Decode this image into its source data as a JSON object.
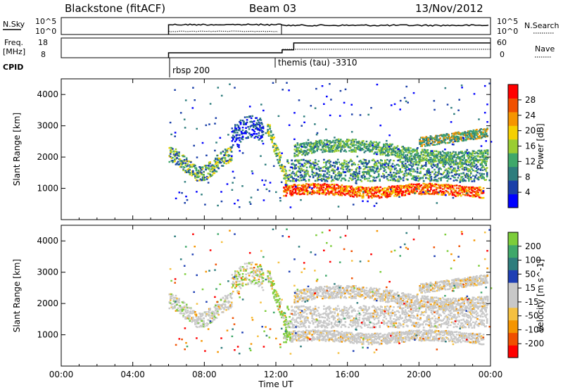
{
  "header": {
    "station": "Blackstone (fitACF)",
    "beam": "Beam 03",
    "date": "13/Nov/2012"
  },
  "noise_panel": {
    "left_label": "N.Sky",
    "right_label": "N.Search",
    "left_ticks": [
      "10^5",
      "10^0"
    ],
    "right_ticks": [
      "10^5",
      "10^0"
    ]
  },
  "freq_panel": {
    "left_label_line1": "Freq.",
    "left_label_line2": "[MHz]",
    "left_ticks": [
      "18",
      "8"
    ],
    "right_label": "Nave",
    "right_ticks": [
      "60",
      "0"
    ]
  },
  "cpid": {
    "label": "CPID",
    "entries": [
      {
        "name": "rbsp 200",
        "time_h": 6.0
      },
      {
        "name": "themis (tau) -3310",
        "time_h": 12.35
      }
    ]
  },
  "time_axis": {
    "label": "Time UT",
    "ticks": [
      "00:00",
      "04:00",
      "08:00",
      "12:00",
      "16:00",
      "20:00",
      "00:00"
    ],
    "range_h": [
      0,
      24
    ]
  },
  "colors": {
    "power": [
      "#0000ff",
      "#1a3fa8",
      "#2e7d7d",
      "#3fa86a",
      "#9acd32",
      "#f5d000",
      "#f59500",
      "#f05000",
      "#ff0000"
    ],
    "velocity_pos": [
      "#1e3fb4",
      "#2e7d7d",
      "#3fa86a",
      "#7ccd3a"
    ],
    "velocity_gray": "#c8c8c8",
    "velocity_neg": [
      "#f5c040",
      "#f59500",
      "#f05000",
      "#ff0000"
    ]
  },
  "chart_data": [
    {
      "type": "line",
      "name": "noise",
      "ylabel_left": "N.Sky",
      "ylabel_right": "N.Search",
      "x_range": [
        0,
        24
      ],
      "data_start_h": 6.0
    },
    {
      "type": "line",
      "name": "frequency",
      "series": [
        {
          "x": [
            6.0,
            12.35
          ],
          "y": [
            10.5,
            10.5
          ]
        },
        {
          "x": [
            12.35,
            13.0,
            24.0
          ],
          "y": [
            12,
            15.5,
            15.5
          ]
        }
      ]
    },
    {
      "type": "heatmap",
      "name": "power",
      "ylabel": "Slant Range [km]",
      "ylim": [
        0,
        4500
      ],
      "yticks": [
        "1000",
        "2000",
        "3000",
        "4000"
      ],
      "colorbar_label": "Power [dB]",
      "colorbar_ticks": [
        "28",
        "24",
        "20",
        "16",
        "12",
        "8",
        "4"
      ],
      "xlim_h": [
        0,
        24
      ]
    },
    {
      "type": "heatmap",
      "name": "velocity",
      "ylabel": "Slant Range [km]",
      "ylim": [
        0,
        4500
      ],
      "yticks": [
        "1000",
        "2000",
        "3000",
        "4000"
      ],
      "colorbar_label": "Velocity [m s^-1]",
      "colorbar_ticks": [
        "200",
        "100",
        "50",
        "15",
        "-15",
        "-50",
        "-100",
        "-200"
      ],
      "xlim_h": [
        0,
        24
      ]
    }
  ]
}
